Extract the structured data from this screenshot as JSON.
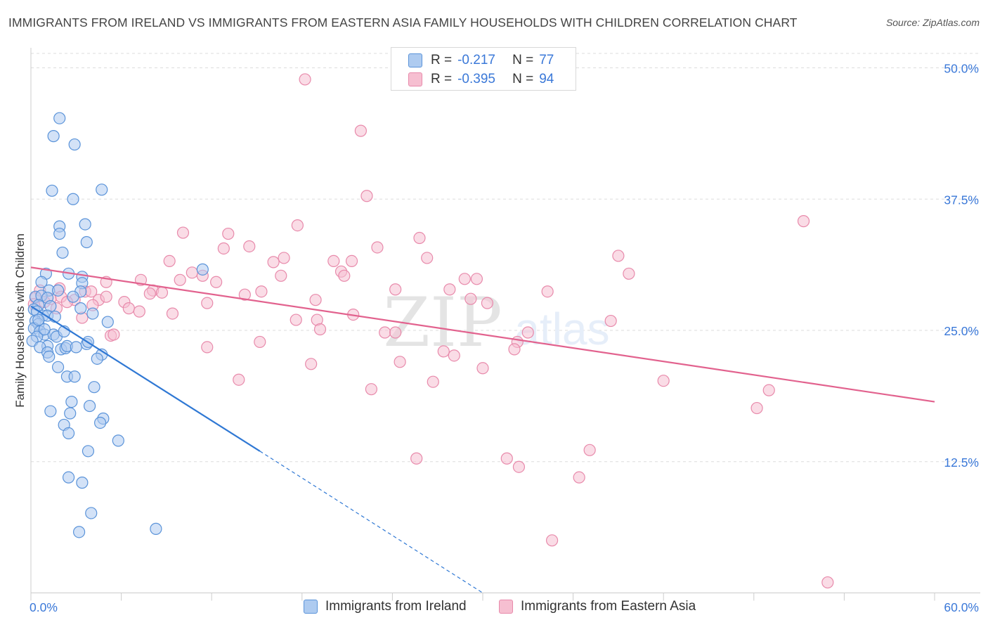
{
  "header": {
    "title": "IMMIGRANTS FROM IRELAND VS IMMIGRANTS FROM EASTERN ASIA FAMILY HOUSEHOLDS WITH CHILDREN CORRELATION CHART",
    "source": "Source: ZipAtlas.com"
  },
  "legend": {
    "r_label": "R =",
    "n_label": "N =",
    "series": [
      {
        "r": "-0.217",
        "n": "77"
      },
      {
        "r": "-0.395",
        "n": "94"
      }
    ]
  },
  "watermark": {
    "zip": "ZIP",
    "atlas": "atlas"
  },
  "colors": {
    "blue_fill": "#aecbf0",
    "blue_stroke": "#5a93d9",
    "blue_line": "#2f78d4",
    "pink_fill": "#f6bfd1",
    "pink_stroke": "#e88aab",
    "pink_line": "#e2628e",
    "tick_label": "#3a78d8",
    "grid": "#dddddd"
  },
  "chart_data": {
    "type": "scatter",
    "title": "IMMIGRANTS FROM IRELAND VS IMMIGRANTS FROM EASTERN ASIA FAMILY HOUSEHOLDS WITH CHILDREN CORRELATION CHART",
    "xlabel": "",
    "ylabel": "Family Households with Children",
    "xlim": [
      0,
      60
    ],
    "ylim": [
      0,
      52.5
    ],
    "x_ticks": [
      0,
      60
    ],
    "x_tick_labels": [
      "0.0%",
      "60.0%"
    ],
    "y_ticks": [
      12.5,
      25.0,
      37.5,
      50.0
    ],
    "y_tick_labels": [
      "12.5%",
      "25.0%",
      "37.5%",
      "50.0%"
    ],
    "grid": "horizontal dashed",
    "legend_position": "top-center",
    "series": [
      {
        "name": "Immigrants from Ireland",
        "color": "#5a93d9",
        "r": -0.217,
        "n": 77,
        "trendline": {
          "x": [
            0,
            15.2
          ],
          "y": [
            27.3,
            13.5
          ],
          "dashed_extension_to": [
            30,
            0
          ]
        },
        "points": [
          [
            1.9,
            45.2
          ],
          [
            2.9,
            42.7
          ],
          [
            1.5,
            43.5
          ],
          [
            1.4,
            38.3
          ],
          [
            4.7,
            38.4
          ],
          [
            2.8,
            37.5
          ],
          [
            1.9,
            34.9
          ],
          [
            3.6,
            35.1
          ],
          [
            1.9,
            34.2
          ],
          [
            3.7,
            33.4
          ],
          [
            2.1,
            32.4
          ],
          [
            1.0,
            30.4
          ],
          [
            2.5,
            30.4
          ],
          [
            3.4,
            30.1
          ],
          [
            11.4,
            30.8
          ],
          [
            0.7,
            29.6
          ],
          [
            1.2,
            28.8
          ],
          [
            1.8,
            28.8
          ],
          [
            3.4,
            29.5
          ],
          [
            3.3,
            28.7
          ],
          [
            0.3,
            28.2
          ],
          [
            0.7,
            28.3
          ],
          [
            1.1,
            28.1
          ],
          [
            2.8,
            28.2
          ],
          [
            0.5,
            27.4
          ],
          [
            1.3,
            27.3
          ],
          [
            0.2,
            27.0
          ],
          [
            0.4,
            26.8
          ],
          [
            0.8,
            26.4
          ],
          [
            1.1,
            26.4
          ],
          [
            3.3,
            27.1
          ],
          [
            4.1,
            26.6
          ],
          [
            0.3,
            25.9
          ],
          [
            0.5,
            25.6
          ],
          [
            5.1,
            25.8
          ],
          [
            0.2,
            25.2
          ],
          [
            0.6,
            24.9
          ],
          [
            0.9,
            24.6
          ],
          [
            1.5,
            24.6
          ],
          [
            1.7,
            24.4
          ],
          [
            0.4,
            24.4
          ],
          [
            0.1,
            24.0
          ],
          [
            1.1,
            23.5
          ],
          [
            0.6,
            23.4
          ],
          [
            2.0,
            23.2
          ],
          [
            2.3,
            23.3
          ],
          [
            2.4,
            23.5
          ],
          [
            3.0,
            23.4
          ],
          [
            3.7,
            23.7
          ],
          [
            3.8,
            23.9
          ],
          [
            1.1,
            22.9
          ],
          [
            1.2,
            22.5
          ],
          [
            4.7,
            22.7
          ],
          [
            4.4,
            22.3
          ],
          [
            1.8,
            21.5
          ],
          [
            2.4,
            20.6
          ],
          [
            2.9,
            20.6
          ],
          [
            4.2,
            19.6
          ],
          [
            2.7,
            18.2
          ],
          [
            3.9,
            17.8
          ],
          [
            1.3,
            17.3
          ],
          [
            2.6,
            17.1
          ],
          [
            4.8,
            16.6
          ],
          [
            4.6,
            16.2
          ],
          [
            2.2,
            16.0
          ],
          [
            2.5,
            15.2
          ],
          [
            5.8,
            14.5
          ],
          [
            3.8,
            13.5
          ],
          [
            2.5,
            11.0
          ],
          [
            3.4,
            10.5
          ],
          [
            4.0,
            7.6
          ],
          [
            3.2,
            5.8
          ],
          [
            8.3,
            6.1
          ],
          [
            0.5,
            26.0
          ],
          [
            1.6,
            26.3
          ],
          [
            0.9,
            25.1
          ],
          [
            2.2,
            24.9
          ]
        ]
      },
      {
        "name": "Immigrants from Eastern Asia",
        "color": "#e88aab",
        "r": -0.395,
        "n": 94,
        "trendline": {
          "x": [
            0,
            60
          ],
          "y": [
            31.0,
            18.2
          ]
        },
        "points": [
          [
            18.2,
            48.9
          ],
          [
            21.9,
            44.0
          ],
          [
            22.3,
            37.8
          ],
          [
            51.3,
            35.4
          ],
          [
            17.7,
            35.0
          ],
          [
            10.1,
            34.3
          ],
          [
            13.1,
            34.2
          ],
          [
            25.8,
            33.8
          ],
          [
            14.5,
            33.0
          ],
          [
            12.8,
            32.8
          ],
          [
            23.0,
            32.9
          ],
          [
            26.3,
            31.9
          ],
          [
            16.8,
            31.9
          ],
          [
            9.2,
            31.6
          ],
          [
            16.1,
            31.5
          ],
          [
            20.1,
            31.6
          ],
          [
            21.3,
            31.6
          ],
          [
            39.0,
            32.1
          ],
          [
            20.6,
            30.6
          ],
          [
            10.7,
            30.5
          ],
          [
            16.6,
            30.2
          ],
          [
            11.4,
            30.2
          ],
          [
            9.9,
            29.8
          ],
          [
            7.3,
            29.8
          ],
          [
            20.8,
            30.2
          ],
          [
            12.3,
            29.6
          ],
          [
            5.0,
            29.6
          ],
          [
            28.8,
            29.9
          ],
          [
            29.6,
            29.9
          ],
          [
            39.7,
            30.4
          ],
          [
            1.9,
            29.0
          ],
          [
            3.6,
            28.7
          ],
          [
            4.0,
            28.7
          ],
          [
            8.1,
            28.8
          ],
          [
            15.3,
            28.7
          ],
          [
            24.2,
            28.9
          ],
          [
            27.8,
            28.9
          ],
          [
            34.3,
            28.7
          ],
          [
            7.9,
            28.5
          ],
          [
            14.2,
            28.4
          ],
          [
            2.0,
            28.2
          ],
          [
            1.3,
            28.0
          ],
          [
            0.3,
            28.1
          ],
          [
            0.9,
            27.7
          ],
          [
            2.9,
            27.9
          ],
          [
            4.5,
            27.9
          ],
          [
            18.9,
            27.9
          ],
          [
            29.2,
            28.0
          ],
          [
            30.3,
            27.6
          ],
          [
            6.2,
            27.7
          ],
          [
            11.7,
            27.6
          ],
          [
            0.2,
            27.5
          ],
          [
            6.5,
            27.1
          ],
          [
            1.7,
            27.1
          ],
          [
            4.1,
            27.4
          ],
          [
            7.2,
            26.8
          ],
          [
            9.4,
            26.6
          ],
          [
            21.4,
            26.5
          ],
          [
            3.4,
            26.2
          ],
          [
            17.6,
            26.0
          ],
          [
            19.0,
            26.0
          ],
          [
            38.5,
            25.9
          ],
          [
            19.2,
            25.1
          ],
          [
            23.5,
            24.8
          ],
          [
            24.2,
            24.8
          ],
          [
            33.0,
            24.8
          ],
          [
            5.3,
            24.5
          ],
          [
            5.5,
            24.6
          ],
          [
            15.2,
            23.9
          ],
          [
            32.3,
            23.9
          ],
          [
            11.7,
            23.4
          ],
          [
            32.1,
            23.2
          ],
          [
            27.4,
            23.0
          ],
          [
            28.1,
            22.6
          ],
          [
            18.6,
            21.8
          ],
          [
            24.5,
            22.0
          ],
          [
            30.0,
            21.4
          ],
          [
            13.8,
            20.3
          ],
          [
            26.7,
            20.1
          ],
          [
            42.0,
            20.2
          ],
          [
            49.0,
            19.3
          ],
          [
            22.6,
            19.4
          ],
          [
            48.2,
            17.6
          ],
          [
            37.1,
            13.6
          ],
          [
            25.6,
            12.8
          ],
          [
            31.6,
            12.8
          ],
          [
            32.4,
            12.0
          ],
          [
            36.4,
            11.0
          ],
          [
            34.6,
            5.0
          ],
          [
            52.9,
            1.0
          ],
          [
            0.6,
            28.8
          ],
          [
            2.4,
            27.7
          ],
          [
            5.0,
            28.2
          ],
          [
            8.7,
            28.6
          ]
        ]
      }
    ]
  },
  "bottom_legend": {
    "items": [
      {
        "label": "Immigrants from Ireland"
      },
      {
        "label": "Immigrants from Eastern Asia"
      }
    ]
  }
}
